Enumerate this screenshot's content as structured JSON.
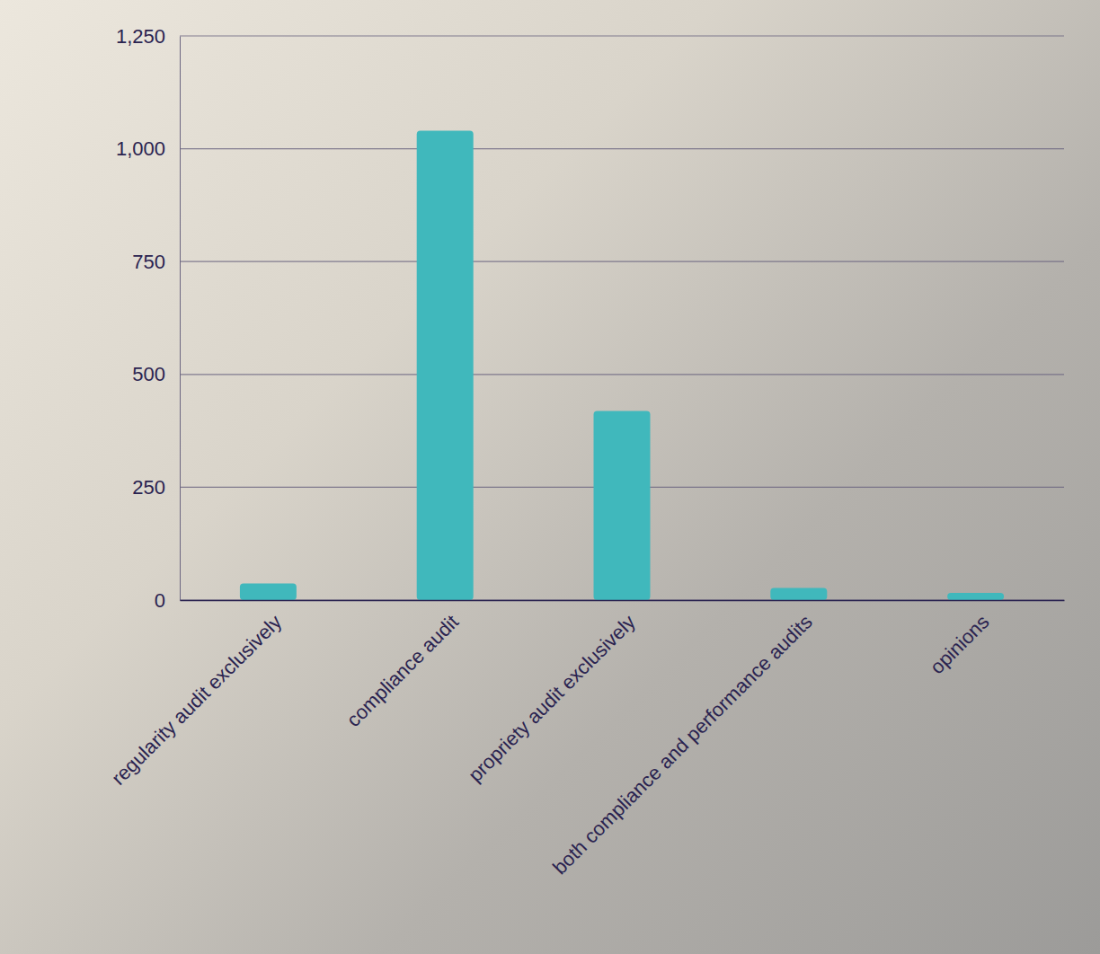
{
  "chart_data": {
    "type": "bar",
    "categories": [
      "regularity audit exclusively",
      "compliance audit",
      "propriety audit exclusively",
      "both compliance and performance audits",
      "opinions"
    ],
    "values": [
      37,
      1040,
      419,
      27,
      16
    ],
    "color": "#40b8bc",
    "ylim": [
      0,
      1250
    ],
    "yticks": [
      0,
      250,
      500,
      {
        "value": 750,
        "label": "750"
      },
      {
        "value": 1000,
        "label": "1,000"
      },
      {
        "value": 1250,
        "label": "1,250"
      }
    ],
    "grid": true
  }
}
